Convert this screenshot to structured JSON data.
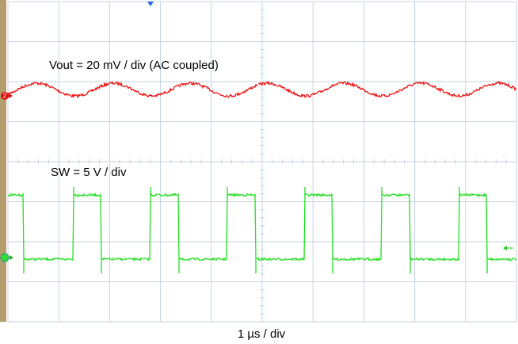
{
  "labels": {
    "vout": "Vout = 20 mV / div (AC coupled)",
    "sw": "SW = 5 V / div",
    "timebase": "1 µs / div"
  },
  "markers": {
    "ch2": "2"
  }
}
